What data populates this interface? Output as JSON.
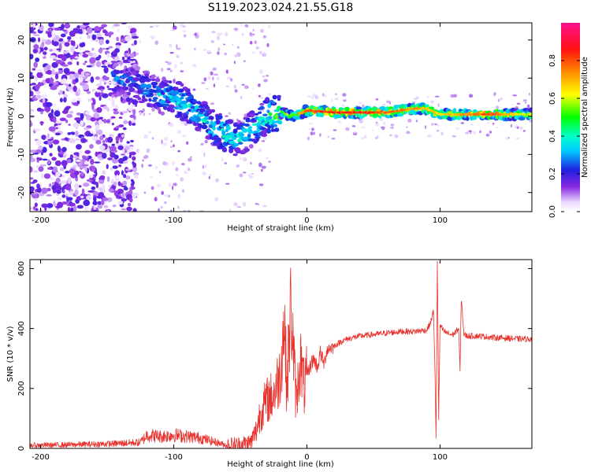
{
  "figure": {
    "title": "S119.2023.024.21.55.G18"
  },
  "chart_data": [
    {
      "type": "heatmap",
      "xlabel": "Height of straight line (km)",
      "ylabel": "Frequency (Hz)",
      "xlim": [
        -208,
        169
      ],
      "ylim": [
        -25,
        24.5
      ],
      "xticks": [
        -200,
        -100,
        0,
        100
      ],
      "yticks": [
        -20,
        -10,
        0,
        10,
        20
      ],
      "grid": false,
      "colorbar": {
        "label": "Normalized spectral amplitude",
        "range": [
          0.0,
          1.0
        ],
        "ticks": [
          0.0,
          0.2,
          0.4,
          0.6,
          0.8
        ],
        "colormap": "white-purple-blue-cyan-green-yellow-red-magenta"
      },
      "ridge": {
        "x": [
          -145,
          -130,
          -115,
          -100,
          -90,
          -80,
          -70,
          -60,
          -50,
          -40,
          -30,
          -20,
          -10,
          0,
          20,
          40,
          60,
          80,
          90,
          100,
          120,
          140,
          169
        ],
        "y": [
          10,
          9,
          6,
          5,
          3,
          0,
          -3,
          -5,
          -6,
          -3,
          0,
          1,
          0,
          1.5,
          1,
          1,
          1,
          2,
          2,
          0.5,
          0.5,
          0.5,
          0.5
        ],
        "amplitude": [
          0.3,
          0.3,
          0.35,
          0.4,
          0.4,
          0.4,
          0.45,
          0.45,
          0.4,
          0.4,
          0.5,
          0.6,
          0.6,
          0.85,
          0.9,
          0.9,
          0.85,
          0.8,
          0.75,
          0.7,
          0.8,
          0.85,
          0.6
        ]
      }
    },
    {
      "type": "line",
      "xlabel": "Height of straight line (km)",
      "ylabel": "SNR (10 * v/v)",
      "xlim": [
        -208,
        169
      ],
      "ylim": [
        0,
        630
      ],
      "xticks": [
        -200,
        -100,
        0,
        100
      ],
      "yticks": [
        0,
        200,
        400,
        600
      ],
      "grid": false,
      "color": "#e8322d",
      "series": [
        {
          "x": [
            -208,
            -180,
            -150,
            -125,
            -120,
            -110,
            -100,
            -90,
            -80,
            -72,
            -60,
            -50,
            -42,
            -38,
            -35,
            -30,
            -25,
            -20,
            -17,
            -15,
            -12,
            -8,
            -5,
            -2,
            0,
            3,
            5,
            8,
            10,
            13,
            15,
            20,
            25,
            30,
            40,
            50,
            60,
            70,
            80,
            90,
            93,
            95,
            96,
            97,
            98,
            99,
            100,
            103,
            108,
            110,
            114,
            115,
            116,
            118,
            120,
            130,
            140,
            150,
            160,
            169
          ],
          "y": [
            10,
            12,
            15,
            20,
            45,
            40,
            45,
            40,
            35,
            25,
            10,
            12,
            20,
            60,
            120,
            160,
            180,
            250,
            430,
            200,
            480,
            150,
            300,
            200,
            240,
            280,
            300,
            270,
            320,
            280,
            330,
            340,
            355,
            365,
            375,
            380,
            385,
            390,
            390,
            395,
            420,
            460,
            300,
            40,
            620,
            100,
            410,
            390,
            380,
            380,
            400,
            260,
            500,
            380,
            375,
            375,
            370,
            368,
            365,
            365
          ]
        }
      ]
    }
  ]
}
